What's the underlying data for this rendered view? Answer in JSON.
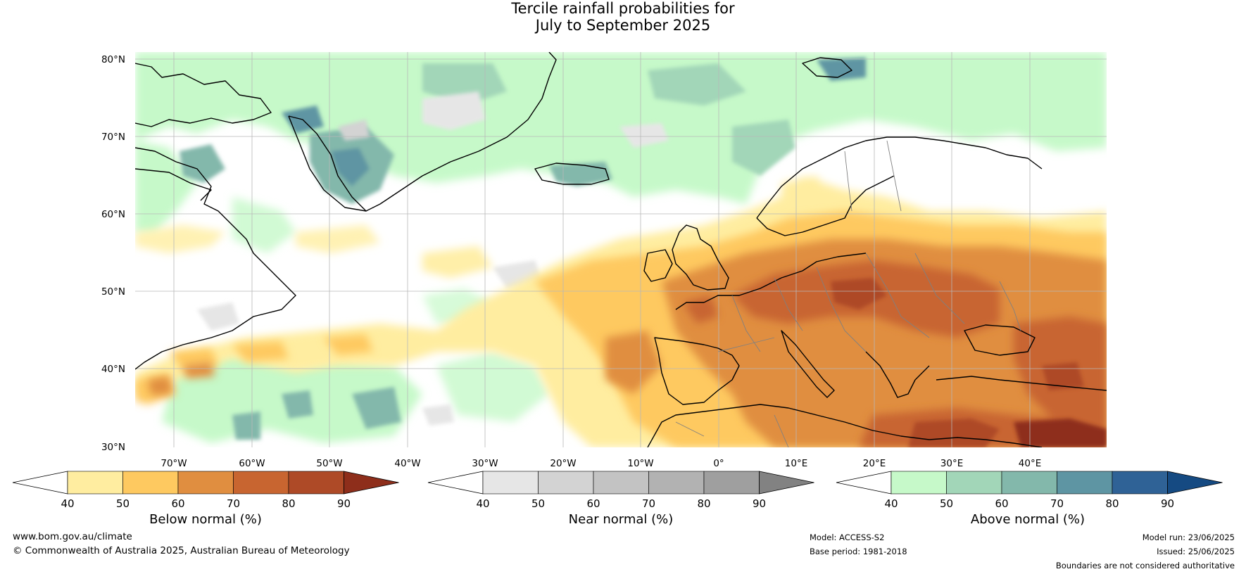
{
  "title": {
    "line1": "Tercile rainfall probabilities for",
    "line2": "July to September 2025"
  },
  "map": {
    "lon_range": [
      -80,
      50
    ],
    "lat_range": [
      30,
      80
    ],
    "lat_ticks": [
      "80°N",
      "70°N",
      "60°N",
      "50°N",
      "40°N",
      "30°N"
    ],
    "lon_ticks": [
      "70°W",
      "60°W",
      "50°W",
      "40°W",
      "30°W",
      "20°W",
      "10°W",
      "0°",
      "10°E",
      "20°E",
      "30°E",
      "40°E"
    ],
    "grid": true,
    "ocean_color": "#ffffff"
  },
  "colorbars": [
    {
      "label": "Below normal (%)",
      "ticks": [
        "40",
        "50",
        "60",
        "70",
        "80",
        "90"
      ],
      "colors": [
        "#ffffff",
        "#ffeda0",
        "#fec960",
        "#e08e40",
        "#c86530",
        "#ae4a27",
        "#8e2e1b"
      ]
    },
    {
      "label": "Near normal (%)",
      "ticks": [
        "40",
        "50",
        "60",
        "70",
        "80",
        "90"
      ],
      "colors": [
        "#ffffff",
        "#e6e6e6",
        "#d3d3d3",
        "#c3c3c3",
        "#b2b2b2",
        "#9f9f9f",
        "#828282"
      ]
    },
    {
      "label": "Above normal (%)",
      "ticks": [
        "40",
        "50",
        "60",
        "70",
        "80",
        "90"
      ],
      "colors": [
        "#ffffff",
        "#c6f9c9",
        "#a2d6b8",
        "#83b8ab",
        "#5e95a3",
        "#2f6296",
        "#154a82"
      ]
    }
  ],
  "footer": {
    "website": "www.bom.gov.au/climate",
    "copyright": "© Commonwealth of Australia 2025, Australian Bureau of Meteorology",
    "model": "Model: ACCESS-S2",
    "base_period": "Base period: 1981-2018",
    "model_run": "Model run: 23/06/2025",
    "issued": "Issued: 25/06/2025",
    "disclaimer": "Boundaries are not considered authoritative"
  }
}
